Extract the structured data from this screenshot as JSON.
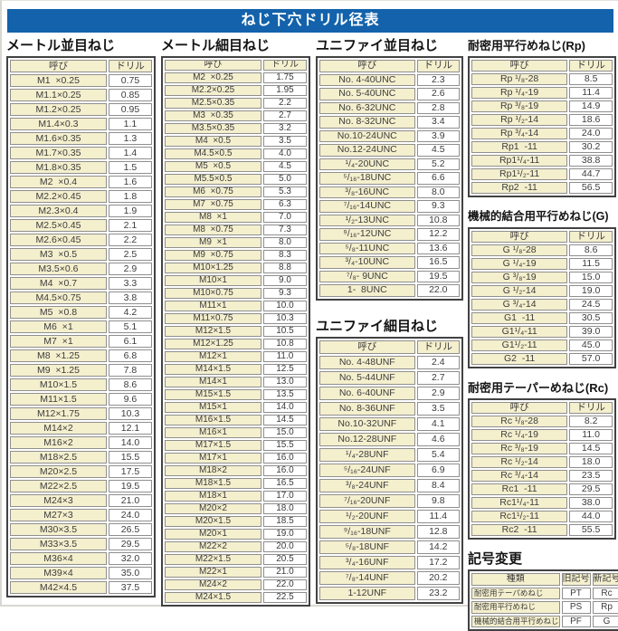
{
  "page_title": "ねじ下穴ドリル径表",
  "colors": {
    "title_bg": "#1362ab",
    "title_fg": "#ffffff",
    "cell_yellow": "#f4efcd",
    "cell_white": "#ffffff",
    "outer_border": "#424242",
    "inner_border": "#8f8f8f",
    "text": "#3c3c3c"
  },
  "sections": {
    "metric_coarse": {
      "title": "メートル並目ねじ",
      "table": {
        "headers": [
          "呼び",
          "ドリル"
        ],
        "rows": [
          [
            "M1  ×0.25",
            "0.75"
          ],
          [
            "M1.1×0.25",
            "0.85"
          ],
          [
            "M1.2×0.25",
            "0.95"
          ],
          [
            "M1.4×0.3",
            "1.1"
          ],
          [
            "M1.6×0.35",
            "1.3"
          ],
          [
            "M1.7×0.35",
            "1.4"
          ],
          [
            "M1.8×0.35",
            "1.5"
          ],
          [
            "M2  ×0.4",
            "1.6"
          ],
          [
            "M2.2×0.45",
            "1.8"
          ],
          [
            "M2.3×0.4",
            "1.9"
          ],
          [
            "M2.5×0.45",
            "2.1"
          ],
          [
            "M2.6×0.45",
            "2.2"
          ],
          [
            "M3  ×0.5",
            "2.5"
          ],
          [
            "M3.5×0.6",
            "2.9"
          ],
          [
            "M4  ×0.7",
            "3.3"
          ],
          [
            "M4.5×0.75",
            "3.8"
          ],
          [
            "M5  ×0.8",
            "4.2"
          ],
          [
            "M6  ×1",
            "5.1"
          ],
          [
            "M7  ×1",
            "6.1"
          ],
          [
            "M8  ×1.25",
            "6.8"
          ],
          [
            "M9  ×1.25",
            "7.8"
          ],
          [
            "M10×1.5",
            "8.6"
          ],
          [
            "M11×1.5",
            "9.6"
          ],
          [
            "M12×1.75",
            "10.3"
          ],
          [
            "M14×2",
            "12.1"
          ],
          [
            "M16×2",
            "14.0"
          ],
          [
            "M18×2.5",
            "15.5"
          ],
          [
            "M20×2.5",
            "17.5"
          ],
          [
            "M22×2.5",
            "19.5"
          ],
          [
            "M24×3",
            "21.0"
          ],
          [
            "M27×3",
            "24.0"
          ],
          [
            "M30×3.5",
            "26.5"
          ],
          [
            "M33×3.5",
            "29.5"
          ],
          [
            "M36×4",
            "32.0"
          ],
          [
            "M39×4",
            "35.0"
          ],
          [
            "M42×4.5",
            "37.5"
          ]
        ]
      }
    },
    "metric_fine": {
      "title": "メートル細目ねじ",
      "table": {
        "headers": [
          "呼び",
          "ドリル"
        ],
        "rows": [
          [
            "M2  ×0.25",
            "1.75"
          ],
          [
            "M2.2×0.25",
            "1.95"
          ],
          [
            "M2.5×0.35",
            "2.2"
          ],
          [
            "M3  ×0.35",
            "2.7"
          ],
          [
            "M3.5×0.35",
            "3.2"
          ],
          [
            "M4  ×0.5",
            "3.5"
          ],
          [
            "M4.5×0.5",
            "4.0"
          ],
          [
            "M5  ×0.5",
            "4.5"
          ],
          [
            "M5.5×0.5",
            "5.0"
          ],
          [
            "M6  ×0.75",
            "5.3"
          ],
          [
            "M7  ×0.75",
            "6.3"
          ],
          [
            "M8  ×1",
            "7.0"
          ],
          [
            "M8  ×0.75",
            "7.3"
          ],
          [
            "M9  ×1",
            "8.0"
          ],
          [
            "M9  ×0.75",
            "8.3"
          ],
          [
            "M10×1.25",
            "8.8"
          ],
          [
            "M10×1",
            "9.0"
          ],
          [
            "M10×0.75",
            "9.3"
          ],
          [
            "M11×1",
            "10.0"
          ],
          [
            "M11×0.75",
            "10.3"
          ],
          [
            "M12×1.5",
            "10.5"
          ],
          [
            "M12×1.25",
            "10.8"
          ],
          [
            "M12×1",
            "11.0"
          ],
          [
            "M14×1.5",
            "12.5"
          ],
          [
            "M14×1",
            "13.0"
          ],
          [
            "M15×1.5",
            "13.5"
          ],
          [
            "M15×1",
            "14.0"
          ],
          [
            "M16×1.5",
            "14.5"
          ],
          [
            "M16×1",
            "15.0"
          ],
          [
            "M17×1.5",
            "15.5"
          ],
          [
            "M17×1",
            "16.0"
          ],
          [
            "M18×2",
            "16.0"
          ],
          [
            "M18×1.5",
            "16.5"
          ],
          [
            "M18×1",
            "17.0"
          ],
          [
            "M20×2",
            "18.0"
          ],
          [
            "M20×1.5",
            "18.5"
          ],
          [
            "M20×1",
            "19.0"
          ],
          [
            "M22×2",
            "20.0"
          ],
          [
            "M22×1.5",
            "20.5"
          ],
          [
            "M22×1",
            "21.0"
          ],
          [
            "M24×2",
            "22.0"
          ],
          [
            "M24×1.5",
            "22.5"
          ]
        ]
      }
    },
    "unified_coarse": {
      "title": "ユニファイ並目ねじ",
      "table": {
        "headers": [
          "呼び",
          "ドリル"
        ],
        "rows": [
          [
            "No. 4-40UNC",
            "2.3"
          ],
          [
            "No. 5-40UNC",
            "2.6"
          ],
          [
            "No. 6-32UNC",
            "2.8"
          ],
          [
            "No. 8-32UNC",
            "3.4"
          ],
          [
            "No.10-24UNC",
            "3.9"
          ],
          [
            "No.12-24UNC",
            "4.5"
          ],
          [
            "¹/₄-20UNC",
            "5.2"
          ],
          [
            "⁵/₁₆-18UNC",
            "6.6"
          ],
          [
            "³/₈-16UNC",
            "8.0"
          ],
          [
            "⁷/₁₆-14UNC",
            "9.3"
          ],
          [
            "¹/₂-13UNC",
            "10.8"
          ],
          [
            "⁹/₁₆-12UNC",
            "12.2"
          ],
          [
            "⁵/₈-11UNC",
            "13.6"
          ],
          [
            "³/₄-10UNC",
            "16.5"
          ],
          [
            "⁷/₈- 9UNC",
            "19.5"
          ],
          [
            "1-  8UNC",
            "22.0"
          ]
        ]
      }
    },
    "unified_fine": {
      "title": "ユニファイ細目ねじ",
      "table": {
        "headers": [
          "呼び",
          "ドリル"
        ],
        "rows": [
          [
            "No. 4-48UNF",
            "2.4"
          ],
          [
            "No. 5-44UNF",
            "2.7"
          ],
          [
            "No. 6-40UNF",
            "2.9"
          ],
          [
            "No. 8-36UNF",
            "3.5"
          ],
          [
            "No.10-32UNF",
            "4.1"
          ],
          [
            "No.12-28UNF",
            "4.6"
          ],
          [
            "¹/₄-28UNF",
            "5.4"
          ],
          [
            "⁵/₁₆-24UNF",
            "6.9"
          ],
          [
            "³/₈-24UNF",
            "8.4"
          ],
          [
            "⁷/₁₆-20UNF",
            "9.8"
          ],
          [
            "¹/₂-20UNF",
            "11.4"
          ],
          [
            "⁹/₁₆-18UNF",
            "12.8"
          ],
          [
            "⁵/₈-18UNF",
            "14.2"
          ],
          [
            "³/₄-16UNF",
            "17.2"
          ],
          [
            "⁷/₈-14UNF",
            "20.2"
          ],
          [
            "1-12UNF",
            "23.2"
          ]
        ]
      }
    },
    "rp": {
      "title": "耐密用平行めねじ(Rp)",
      "table": {
        "headers": [
          "呼び",
          "ドリル"
        ],
        "rows": [
          [
            "Rp ¹/₈-28",
            "8.5"
          ],
          [
            "Rp ¹/₄-19",
            "11.4"
          ],
          [
            "Rp ³/₈-19",
            "14.9"
          ],
          [
            "Rp ¹/₂-14",
            "18.6"
          ],
          [
            "Rp ³/₄-14",
            "24.0"
          ],
          [
            "Rp1  -11",
            "30.2"
          ],
          [
            "Rp1¹/₄-11",
            "38.8"
          ],
          [
            "Rp1¹/₂-11",
            "44.7"
          ],
          [
            "Rp2  -11",
            "56.5"
          ]
        ]
      }
    },
    "g": {
      "title": "機械的結合用平行めねじ(G)",
      "table": {
        "headers": [
          "呼び",
          "ドリル"
        ],
        "rows": [
          [
            "G ¹/₈-28",
            "8.6"
          ],
          [
            "G ¹/₄-19",
            "11.5"
          ],
          [
            "G ³/₈-19",
            "15.0"
          ],
          [
            "G ¹/₂-14",
            "19.0"
          ],
          [
            "G ³/₄-14",
            "24.5"
          ],
          [
            "G1  -11",
            "30.5"
          ],
          [
            "G1¹/₄-11",
            "39.0"
          ],
          [
            "G1¹/₂-11",
            "45.0"
          ],
          [
            "G2  -11",
            "57.0"
          ]
        ]
      }
    },
    "rc": {
      "title": "耐密用テーパーめねじ(Rc)",
      "table": {
        "headers": [
          "呼び",
          "ドリル"
        ],
        "rows": [
          [
            "Rc ¹/₈-28",
            "8.2"
          ],
          [
            "Rc ¹/₄-19",
            "11.0"
          ],
          [
            "Rc ³/₈-19",
            "14.5"
          ],
          [
            "Rc ¹/₂-14",
            "18.0"
          ],
          [
            "Rc ³/₄-14",
            "23.5"
          ],
          [
            "Rc1  -11",
            "29.5"
          ],
          [
            "Rc1¹/₄-11",
            "38.0"
          ],
          [
            "Rc1¹/₂-11",
            "44.0"
          ],
          [
            "Rc2  -11",
            "55.5"
          ]
        ]
      }
    },
    "symbol_change": {
      "title": "記号変更",
      "table": {
        "headers": [
          "種類",
          "旧記号",
          "新記号"
        ],
        "rows": [
          [
            "耐密用テーパめねじ",
            "PT",
            "Rc"
          ],
          [
            "耐密用平行めねじ",
            "PS",
            "Rp"
          ],
          [
            "機械的結合用平行めねじ",
            "PF",
            "G"
          ]
        ]
      }
    }
  }
}
